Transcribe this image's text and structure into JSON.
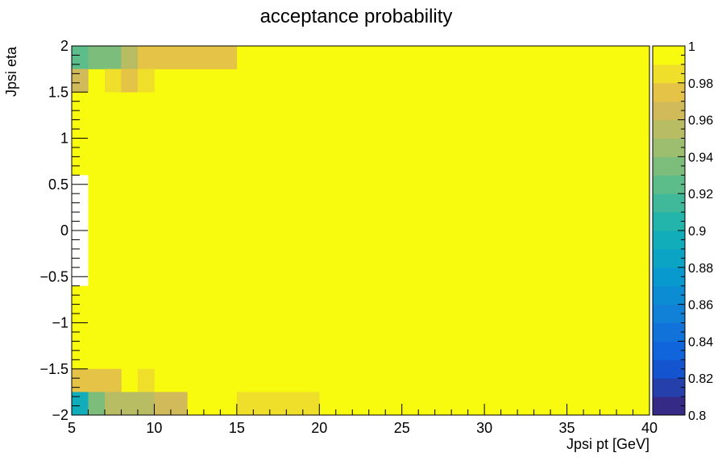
{
  "chart_data": {
    "type": "heatmap",
    "title": "acceptance probability",
    "xlabel": "Jpsi pt [GeV]",
    "ylabel": "Jpsi eta",
    "xlim": [
      5,
      40
    ],
    "ylim": [
      -2,
      2
    ],
    "zlim": [
      0.8,
      1.0
    ],
    "x_ticks": [
      5,
      10,
      15,
      20,
      25,
      30,
      35,
      40
    ],
    "x_tick_labels": [
      "5",
      "10",
      "15",
      "20",
      "25",
      "30",
      "35",
      "40"
    ],
    "y_ticks": [
      -2,
      -1.5,
      -1,
      -0.5,
      0,
      0.5,
      1,
      1.5,
      2
    ],
    "y_tick_labels": [
      "−2",
      "−1.5",
      "−1",
      "−0.5",
      "0",
      "0.5",
      "1",
      "1.5",
      "2"
    ],
    "z_ticks": [
      0.8,
      0.82,
      0.84,
      0.86,
      0.88,
      0.9,
      0.92,
      0.94,
      0.96,
      0.98,
      1.0
    ],
    "z_tick_labels": [
      "0.8",
      "0.82",
      "0.84",
      "0.86",
      "0.88",
      "0.9",
      "0.92",
      "0.94",
      "0.96",
      "0.98",
      "1"
    ],
    "default_value": 1.0,
    "empty_cells": [
      {
        "x": [
          5,
          6
        ],
        "y": [
          -0.6,
          0.6
        ]
      }
    ],
    "cells": [
      {
        "x": [
          5,
          6
        ],
        "y": [
          1.75,
          2.0
        ],
        "z": 0.92
      },
      {
        "x": [
          6,
          8
        ],
        "y": [
          1.75,
          2.0
        ],
        "z": 0.94
      },
      {
        "x": [
          8,
          9
        ],
        "y": [
          1.75,
          2.0
        ],
        "z": 0.955
      },
      {
        "x": [
          9,
          15
        ],
        "y": [
          1.75,
          2.0
        ],
        "z": 0.975
      },
      {
        "x": [
          5,
          6
        ],
        "y": [
          1.5,
          1.75
        ],
        "z": 0.97
      },
      {
        "x": [
          7,
          8
        ],
        "y": [
          1.5,
          1.75
        ],
        "z": 0.985
      },
      {
        "x": [
          8,
          9
        ],
        "y": [
          1.5,
          1.75
        ],
        "z": 0.975
      },
      {
        "x": [
          9,
          10
        ],
        "y": [
          1.5,
          1.75
        ],
        "z": 0.985
      },
      {
        "x": [
          5,
          8
        ],
        "y": [
          -1.75,
          -1.5
        ],
        "z": 0.975
      },
      {
        "x": [
          9,
          10
        ],
        "y": [
          -1.75,
          -1.5
        ],
        "z": 0.985
      },
      {
        "x": [
          5,
          6
        ],
        "y": [
          -2.0,
          -1.75
        ],
        "z": 0.89
      },
      {
        "x": [
          6,
          7
        ],
        "y": [
          -2.0,
          -1.75
        ],
        "z": 0.94
      },
      {
        "x": [
          7,
          10
        ],
        "y": [
          -2.0,
          -1.75
        ],
        "z": 0.955
      },
      {
        "x": [
          10,
          12
        ],
        "y": [
          -2.0,
          -1.75
        ],
        "z": 0.97
      },
      {
        "x": [
          15,
          20
        ],
        "y": [
          -2.0,
          -1.75
        ],
        "z": 0.985
      }
    ]
  }
}
